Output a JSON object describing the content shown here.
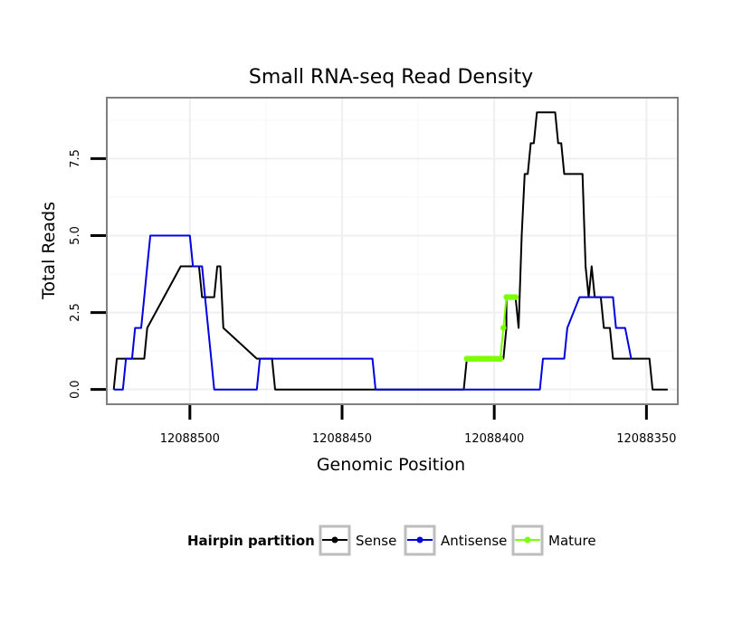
{
  "chart_data": {
    "type": "line",
    "title": "Small RNA-seq Read Density",
    "xlabel": "Genomic Position",
    "ylabel": "Total Reads",
    "x_reversed": true,
    "xlim": [
      12088527,
      12088340
    ],
    "ylim": [
      -0.45,
      9.45
    ],
    "x_ticks": [
      12088500,
      12088450,
      12088400,
      12088350
    ],
    "x_tick_labels": [
      "12088500",
      "12088450",
      "12088400",
      "12088350"
    ],
    "y_ticks": [
      0,
      2.5,
      5,
      7.5
    ],
    "y_tick_labels": [
      "0.0",
      "2.5",
      "5.0",
      "7.5"
    ],
    "grid": true,
    "legend": {
      "title": "Hairpin partition",
      "position": "bottom",
      "entries": [
        "Sense",
        "Antisense",
        "Mature"
      ]
    },
    "series": [
      {
        "name": "Sense",
        "color": "#000000",
        "x": [
          12088525,
          12088524,
          12088518,
          12088517,
          12088515,
          12088514,
          12088503,
          12088502,
          12088498,
          12088497,
          12088496,
          12088495,
          12088494,
          12088493,
          12088492,
          12088491,
          12088490,
          12088489,
          12088478,
          12088477,
          12088476,
          12088475,
          12088473,
          12088472,
          12088470,
          12088410,
          12088409,
          12088397,
          12088396,
          12088396,
          12088395,
          12088394,
          12088393,
          12088392,
          12088391,
          12088390,
          12088389,
          12088388,
          12088387,
          12088386,
          12088385,
          12088384,
          12088383,
          12088382,
          12088381,
          12088380,
          12088379,
          12088378,
          12088377,
          12088376,
          12088375,
          12088374,
          12088373,
          12088372,
          12088371,
          12088370,
          12088369,
          12088368,
          12088367,
          12088366,
          12088365,
          12088364,
          12088363,
          12088362,
          12088361,
          12088360,
          12088359,
          12088358,
          12088357,
          12088356,
          12088355,
          12088350,
          12088349,
          12088348,
          12088347,
          12088343
        ],
        "y": [
          0,
          1,
          1,
          1,
          1,
          2,
          4,
          4,
          4,
          4,
          3,
          3,
          3,
          3,
          3,
          4,
          4,
          2,
          1,
          1,
          1,
          1,
          1,
          0,
          0,
          0,
          1,
          1,
          2,
          3,
          3,
          3,
          3,
          2,
          5,
          7,
          7,
          8,
          8,
          9,
          9,
          9,
          9,
          9,
          9,
          9,
          8,
          8,
          7,
          7,
          7,
          7,
          7,
          7,
          7,
          4,
          3,
          4,
          3,
          3,
          3,
          2,
          2,
          2,
          1,
          1,
          1,
          1,
          1,
          1,
          1,
          1,
          1,
          0,
          0,
          0
        ]
      },
      {
        "name": "Antisense",
        "color": "#0000e0",
        "x": [
          12088525,
          12088522,
          12088521,
          12088520,
          12088519,
          12088518,
          12088517,
          12088516,
          12088515,
          12088514,
          12088513,
          12088512,
          12088511,
          12088510,
          12088500,
          12088499,
          12088498,
          12088497,
          12088496,
          12088495,
          12088494,
          12088493,
          12088492,
          12088491,
          12088490,
          12088489,
          12088488,
          12088487,
          12088486,
          12088485,
          12088484,
          12088483,
          12088482,
          12088481,
          12088480,
          12088479,
          12088478,
          12088477,
          12088476,
          12088459,
          12088458,
          12088457,
          12088456,
          12088455,
          12088454,
          12088453,
          12088452,
          12088451,
          12088450,
          12088440,
          12088439,
          12088438,
          12088385,
          12088384,
          12088383,
          12088382,
          12088380,
          12088379,
          12088378,
          12088377,
          12088376,
          12088372,
          12088371,
          12088370,
          12088369,
          12088368,
          12088367,
          12088366,
          12088365,
          12088363,
          12088362,
          12088361,
          12088360,
          12088359,
          12088357,
          12088355
        ],
        "y": [
          0,
          0,
          1,
          1,
          1,
          2,
          2,
          2,
          3,
          4,
          5,
          5,
          5,
          5,
          5,
          4,
          4,
          4,
          4,
          3,
          2,
          1,
          0,
          0,
          0,
          0,
          0,
          0,
          0,
          0,
          0,
          0,
          0,
          0,
          0,
          0,
          0,
          1,
          1,
          1,
          1,
          1,
          1,
          1,
          1,
          1,
          1,
          1,
          1,
          1,
          0,
          0,
          0,
          1,
          1,
          1,
          1,
          1,
          1,
          1,
          2,
          3,
          3,
          3,
          3,
          3,
          3,
          3,
          3,
          3,
          3,
          3,
          2,
          2,
          2,
          1
        ]
      },
      {
        "name": "Mature",
        "color": "#7cff00",
        "x": [
          12088409,
          12088408,
          12088407,
          12088406,
          12088405,
          12088404,
          12088403,
          12088402,
          12088401,
          12088400,
          12088399,
          12088398,
          12088397,
          12088396,
          12088395,
          12088394,
          12088393
        ],
        "y": [
          1,
          1,
          1,
          1,
          1,
          1,
          1,
          1,
          1,
          1,
          1,
          1,
          2,
          3,
          3,
          3,
          3
        ]
      }
    ]
  }
}
